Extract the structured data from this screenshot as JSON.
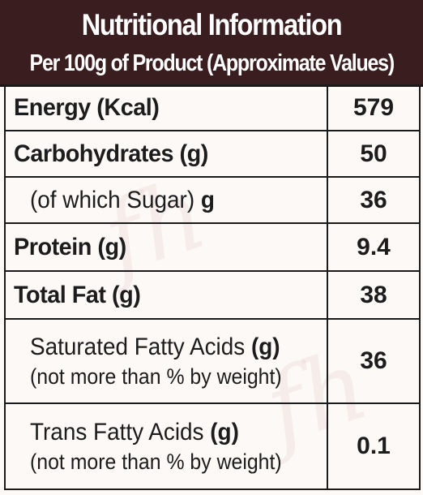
{
  "header": {
    "title": "Nutritional Information",
    "subtitle": "Per 100g of Product (Approximate Values)"
  },
  "rows": [
    {
      "label": "Energy (Kcal)",
      "value": "579"
    },
    {
      "label": "Carbohydrates (g)",
      "value": "50"
    },
    {
      "label_text": "(of which Sugar)",
      "label_unit": "g",
      "value": "36"
    },
    {
      "label": "Protein (g)",
      "value": "9.4"
    },
    {
      "label": "Total Fat (g)",
      "value": "38"
    },
    {
      "label_text": "Saturated Fatty Acids",
      "label_unit": "(g)",
      "note": "(not more than % by weight)",
      "value": "36"
    },
    {
      "label_text": "Trans Fatty Acids",
      "label_unit": "(g)",
      "note": "(not more than % by weight)",
      "value": "0.1"
    }
  ],
  "colors": {
    "header_bg": "#3a1d1e",
    "header_text": "#ffffff",
    "background": "#fcf9f7",
    "border": "#1a1a1a"
  }
}
